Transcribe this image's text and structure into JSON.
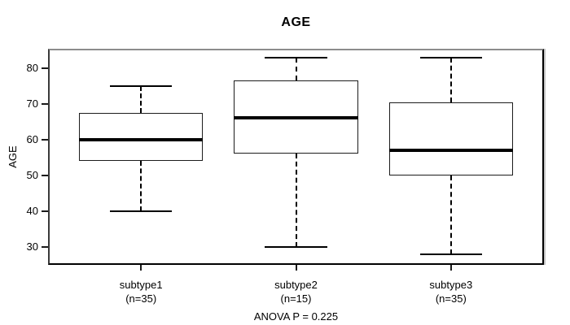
{
  "chart_data": {
    "type": "boxplot",
    "title": "AGE",
    "ylabel": "AGE",
    "note": "ANOVA P = 0.225",
    "y_ticks": [
      30,
      40,
      50,
      60,
      70,
      80
    ],
    "ylim": [
      25.0,
      85.4
    ],
    "xlim": [
      0.4,
      3.6
    ],
    "box_width_units": 0.8,
    "cap_width_units": 0.4,
    "legend": "none",
    "grid": "off",
    "groups": [
      {
        "label": "subtype1",
        "sublabel": "(n=35)",
        "whisker_low": 40,
        "q1": 54,
        "median": 60,
        "q3": 67.5,
        "whisker_high": 75
      },
      {
        "label": "subtype2",
        "sublabel": "(n=15)",
        "whisker_low": 30,
        "q1": 56,
        "median": 66,
        "q3": 76.5,
        "whisker_high": 83
      },
      {
        "label": "subtype3",
        "sublabel": "(n=35)",
        "whisker_low": 28,
        "q1": 50,
        "median": 57,
        "q3": 70.5,
        "whisker_high": 83
      }
    ],
    "colors": {
      "line": "#000000",
      "box_fill": "#ffffff",
      "frame_top": "#8c8c8c",
      "frame_dark": "#000000",
      "background": "#ffffff"
    }
  }
}
